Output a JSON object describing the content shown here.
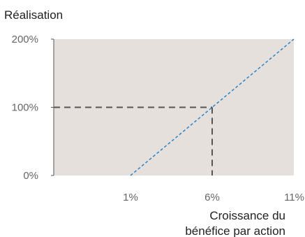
{
  "chart_data": {
    "type": "line",
    "title": "",
    "ylabel": "Réalisation",
    "xlabel_lines": [
      "Croissance du",
      "bénéfice par action"
    ],
    "x_ticks": [
      {
        "value": 1,
        "label": "1%"
      },
      {
        "value": 6,
        "label": "6%"
      },
      {
        "value": 11,
        "label": "11%"
      }
    ],
    "y_ticks": [
      {
        "value": 0,
        "label": "0%"
      },
      {
        "value": 100,
        "label": "100%"
      },
      {
        "value": 200,
        "label": "200%"
      }
    ],
    "xlim": [
      -3.7,
      11
    ],
    "ylim": [
      0,
      200
    ],
    "series": [
      {
        "x": [
          1,
          11
        ],
        "y": [
          0,
          200
        ]
      }
    ],
    "reference_point": {
      "x": 6,
      "y": 100
    },
    "colors": {
      "plot_background": "#e6e0dd",
      "series_line": "#2b83c6",
      "reference_lines": "#555555",
      "axis": "#555555"
    }
  }
}
